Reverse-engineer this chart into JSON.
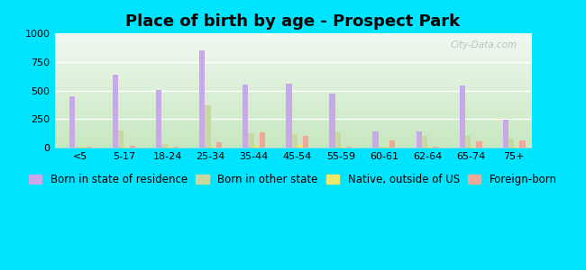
{
  "title": "Place of birth by age - Prospect Park",
  "categories": [
    "<5",
    "5-17",
    "18-24",
    "25-34",
    "35-44",
    "45-54",
    "55-59",
    "60-61",
    "62-64",
    "65-74",
    "75+"
  ],
  "series": {
    "Born in state of residence": [
      450,
      640,
      505,
      850,
      555,
      560,
      475,
      140,
      145,
      545,
      245
    ],
    "Born in other state": [
      5,
      150,
      30,
      370,
      125,
      120,
      135,
      5,
      100,
      105,
      75
    ],
    "Native, outside of US": [
      5,
      10,
      10,
      10,
      15,
      20,
      10,
      5,
      5,
      5,
      5
    ],
    "Foreign-born": [
      10,
      15,
      10,
      50,
      130,
      100,
      10,
      60,
      10,
      55,
      65
    ]
  },
  "colors": {
    "Born in state of residence": "#c8a8e8",
    "Born in other state": "#c8d8a0",
    "Native, outside of US": "#f0e868",
    "Foreign-born": "#f0a898"
  },
  "ylim": [
    0,
    1000
  ],
  "yticks": [
    0,
    250,
    500,
    750,
    1000
  ],
  "outer_bg": "#00e5ff",
  "bar_width": 0.13,
  "title_fontsize": 13,
  "legend_fontsize": 8.5,
  "gradient_bottom": "#c8e8c0",
  "gradient_top": "#f0f8f0"
}
